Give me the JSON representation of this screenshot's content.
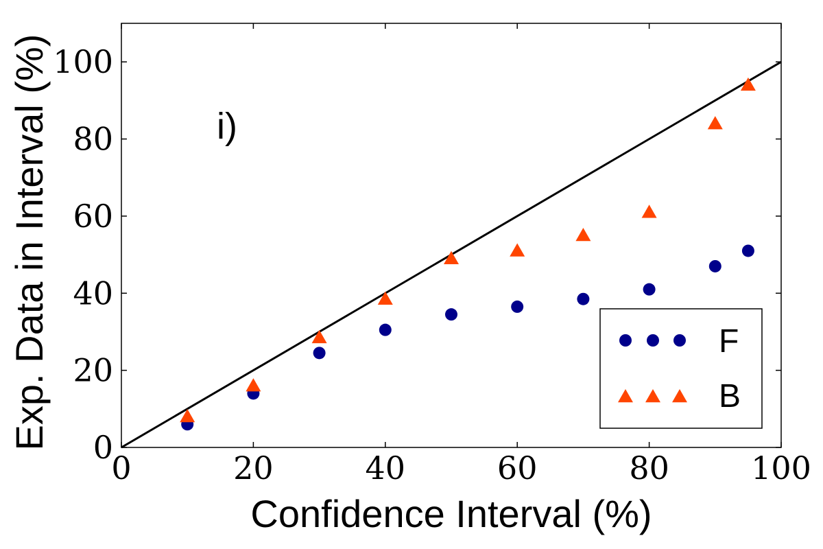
{
  "chart_data": {
    "type": "scatter",
    "panel_label": "i)",
    "xlabel": "Confidence Interval (%)",
    "ylabel": "Exp. Data in Interval (%)",
    "xlim": [
      0,
      100
    ],
    "ylim": [
      0,
      110
    ],
    "x_ticks": [
      "0",
      "20",
      "40",
      "60",
      "80",
      "100"
    ],
    "y_ticks": [
      "0",
      "20",
      "40",
      "60",
      "80",
      "100"
    ],
    "reference_line": {
      "from": [
        0,
        0
      ],
      "to": [
        100,
        100
      ],
      "color": "#000000"
    },
    "legend": {
      "position": "lower-right",
      "entries": [
        "F",
        "B"
      ]
    },
    "series": [
      {
        "name": "F",
        "marker": "circle",
        "color": "#00008b",
        "x": [
          10,
          20,
          30,
          40,
          50,
          60,
          70,
          80,
          90,
          95
        ],
        "values": [
          6,
          14,
          24.5,
          30.5,
          34.5,
          36.5,
          38.5,
          41,
          47,
          51
        ]
      },
      {
        "name": "B",
        "marker": "triangle",
        "color": "#ff4500",
        "x": [
          10,
          20,
          30,
          40,
          50,
          60,
          70,
          80,
          90,
          95
        ],
        "values": [
          8,
          16,
          28.5,
          38.5,
          49,
          51,
          55,
          61,
          84,
          94
        ]
      }
    ]
  }
}
